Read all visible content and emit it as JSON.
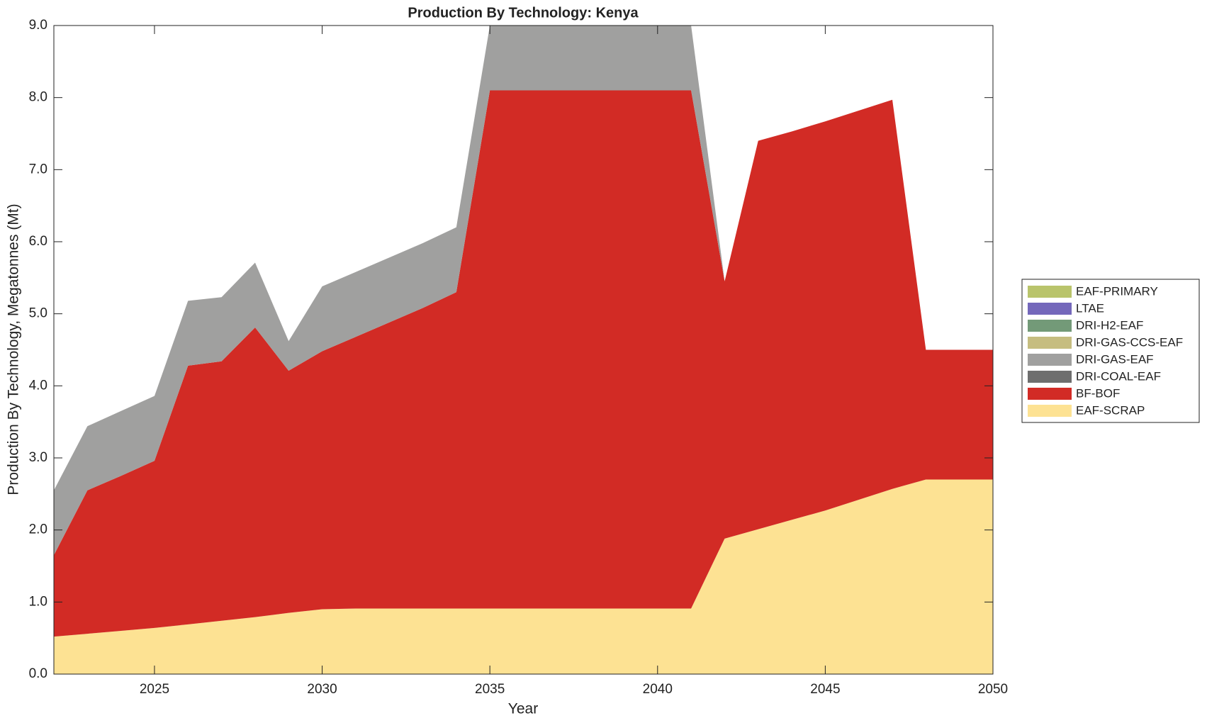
{
  "chart_data": {
    "type": "stacked_area",
    "title": "Production By Technology: Kenya",
    "xlabel": "Year",
    "ylabel": "Production By Technology, Megatonnes (Mt)",
    "x": [
      2022,
      2023,
      2024,
      2025,
      2026,
      2027,
      2028,
      2029,
      2030,
      2031,
      2032,
      2033,
      2034,
      2035,
      2036,
      2037,
      2038,
      2039,
      2040,
      2041,
      2042,
      2043,
      2044,
      2045,
      2046,
      2047,
      2048,
      2049,
      2050
    ],
    "series": [
      {
        "name": "EAF-SCRAP",
        "color": "#fde293",
        "values": [
          0.52,
          0.56,
          0.6,
          0.64,
          0.69,
          0.74,
          0.79,
          0.85,
          0.9,
          0.91,
          0.91,
          0.91,
          0.91,
          0.91,
          0.91,
          0.91,
          0.91,
          0.91,
          0.91,
          0.91,
          1.88,
          2.01,
          2.14,
          2.27,
          2.42,
          2.57,
          2.7,
          2.7,
          2.7
        ]
      },
      {
        "name": "BF-BOF",
        "color": "#d22b25",
        "values": [
          1.13,
          1.99,
          2.15,
          2.32,
          3.59,
          3.6,
          4.02,
          3.36,
          3.58,
          3.77,
          3.97,
          4.17,
          4.39,
          7.19,
          7.19,
          7.19,
          7.19,
          7.19,
          7.19,
          7.19,
          3.57,
          5.39,
          5.39,
          5.4,
          5.4,
          5.4,
          1.8,
          1.8,
          1.8
        ]
      },
      {
        "name": "DRI-COAL-EAF",
        "color": "#6e6e6e",
        "values": [
          0,
          0,
          0,
          0,
          0,
          0,
          0,
          0,
          0,
          0,
          0,
          0,
          0,
          0,
          0,
          0,
          0,
          0,
          0,
          0,
          0,
          0,
          0,
          0,
          0,
          0,
          0,
          0,
          0
        ]
      },
      {
        "name": "DRI-GAS-EAF",
        "color": "#a0a09f",
        "values": [
          0.9,
          0.89,
          0.9,
          0.9,
          0.9,
          0.89,
          0.9,
          0.41,
          0.9,
          0.9,
          0.9,
          0.9,
          0.9,
          0.9,
          0.9,
          0.9,
          0.9,
          0.9,
          0.9,
          0.9,
          0,
          0,
          0,
          0,
          0,
          0,
          0,
          0,
          0
        ]
      },
      {
        "name": "DRI-GAS-CCS-EAF",
        "color": "#c6bd80",
        "values": [
          0,
          0,
          0,
          0,
          0,
          0,
          0,
          0,
          0,
          0,
          0,
          0,
          0,
          0,
          0,
          0,
          0,
          0,
          0,
          0,
          0,
          0,
          0,
          0,
          0,
          0,
          0,
          0,
          0
        ]
      },
      {
        "name": "DRI-H2-EAF",
        "color": "#739a78",
        "values": [
          0,
          0,
          0,
          0,
          0,
          0,
          0,
          0,
          0,
          0,
          0,
          0,
          0,
          0,
          0,
          0,
          0,
          0,
          0,
          0,
          0,
          0,
          0,
          0,
          0,
          0,
          0,
          0,
          0
        ]
      },
      {
        "name": "LTAE",
        "color": "#7468bb",
        "values": [
          0,
          0,
          0,
          0,
          0,
          0,
          0,
          0,
          0,
          0,
          0,
          0,
          0,
          0,
          0,
          0,
          0,
          0,
          0,
          0,
          0,
          0,
          0,
          0,
          0,
          0,
          0,
          0,
          0
        ]
      },
      {
        "name": "EAF-PRIMARY",
        "color": "#b9c46b",
        "values": [
          0,
          0,
          0,
          0,
          0,
          0,
          0,
          0,
          0,
          0,
          0,
          0,
          0,
          0,
          0,
          0,
          0,
          0,
          0,
          0,
          0,
          0,
          0,
          0,
          0,
          0,
          0,
          0,
          0
        ]
      }
    ],
    "xlim": [
      2022,
      2050
    ],
    "xticks": [
      2025,
      2030,
      2035,
      2040,
      2045,
      2050
    ],
    "ylim": [
      0,
      9
    ],
    "yticks": [
      {
        "value": 0,
        "label": "0.0"
      },
      {
        "value": 1,
        "label": "1.0"
      },
      {
        "value": 2,
        "label": "2.0"
      },
      {
        "value": 3,
        "label": "3.0"
      },
      {
        "value": 4,
        "label": "4.0"
      },
      {
        "value": 5,
        "label": "5.0"
      },
      {
        "value": 6,
        "label": "6.0"
      },
      {
        "value": 7,
        "label": "7.0"
      },
      {
        "value": 8,
        "label": "8.0"
      },
      {
        "value": 9,
        "label": "9.0"
      }
    ],
    "legend": "right"
  }
}
